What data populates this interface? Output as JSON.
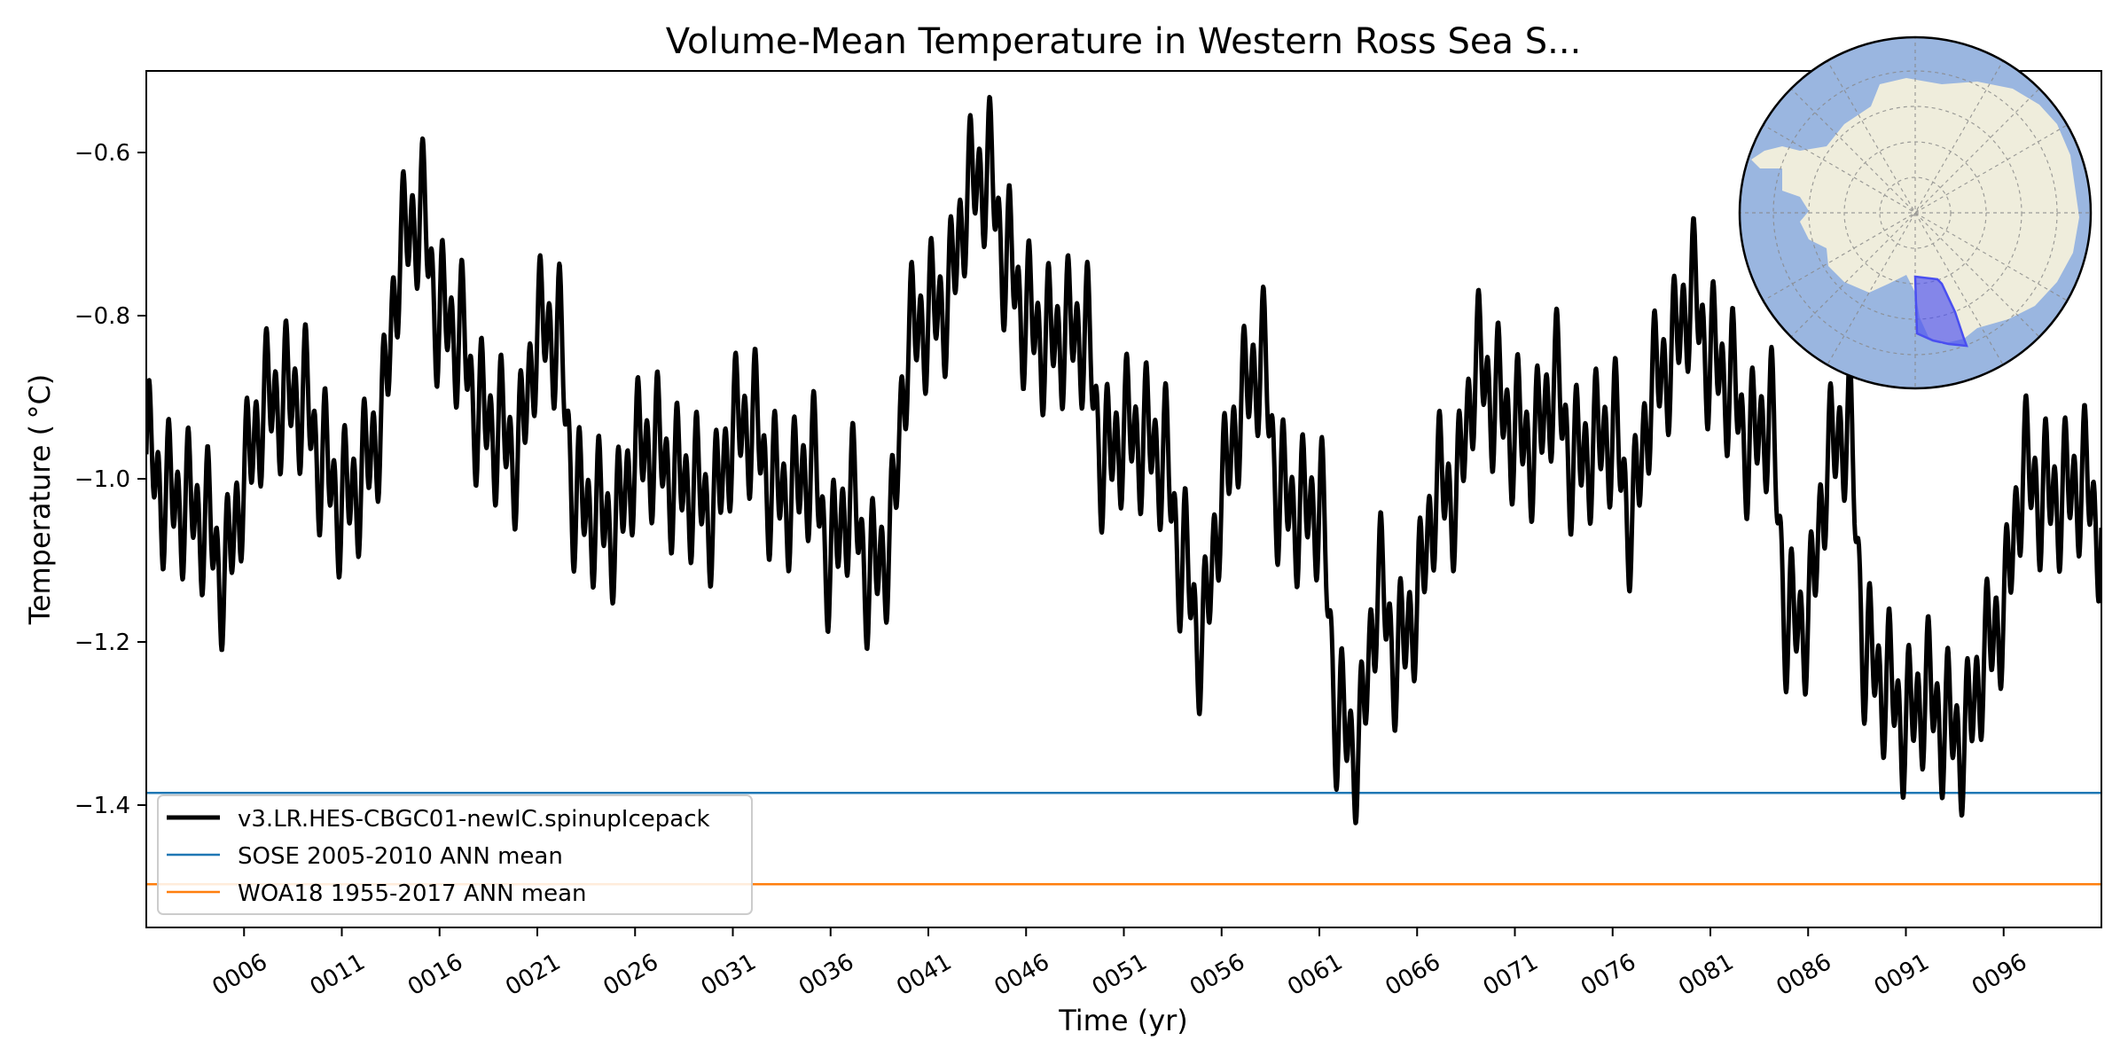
{
  "chart_data": {
    "type": "line",
    "title": "Volume-Mean Temperature in Western Ross Sea S...",
    "xlabel": "Time (yr)",
    "ylabel": "Temperature ( °C)",
    "xlim": [
      1,
      101
    ],
    "ylim": [
      -1.55,
      -0.5
    ],
    "x_ticks": [
      "0006",
      "0011",
      "0016",
      "0021",
      "0026",
      "0031",
      "0036",
      "0041",
      "0046",
      "0051",
      "0056",
      "0061",
      "0066",
      "0071",
      "0076",
      "0081",
      "0086",
      "0091",
      "0096"
    ],
    "x_tick_values": [
      6,
      11,
      16,
      21,
      26,
      31,
      36,
      41,
      46,
      51,
      56,
      61,
      66,
      71,
      76,
      81,
      86,
      91,
      96
    ],
    "y_ticks": [
      "−1.4",
      "−1.2",
      "−1.0",
      "−0.8",
      "−0.6"
    ],
    "y_tick_values": [
      -1.4,
      -1.2,
      -1.0,
      -0.8,
      -0.6
    ],
    "grid": false,
    "legend_position": "lower-left",
    "series": [
      {
        "name": "v3.LR.HES-CBGC01-newIC.spinupIcepack",
        "color": "#000000",
        "seasonal_amplitude": 0.07,
        "x": [
          1,
          2,
          3,
          4,
          5,
          6,
          7,
          8,
          9,
          10,
          11,
          12,
          13,
          14,
          15,
          16,
          17,
          18,
          19,
          20,
          21,
          22,
          23,
          24,
          25,
          26,
          27,
          28,
          29,
          30,
          31,
          32,
          33,
          34,
          35,
          36,
          37,
          38,
          39,
          40,
          41,
          42,
          43,
          44,
          45,
          46,
          47,
          48,
          49,
          50,
          51,
          52,
          53,
          54,
          55,
          56,
          57,
          58,
          59,
          60,
          61,
          62,
          63,
          64,
          65,
          66,
          67,
          68,
          69,
          70,
          71,
          72,
          73,
          74,
          75,
          76,
          77,
          78,
          79,
          80,
          81,
          82,
          83,
          84,
          85,
          86,
          87,
          88,
          89,
          90,
          91,
          92,
          93,
          94,
          95,
          96,
          97,
          98,
          99,
          100,
          101
        ],
        "annual_mean": [
          -0.97,
          -1.02,
          -1.03,
          -1.05,
          -1.12,
          -1.0,
          -0.91,
          -0.9,
          -0.9,
          -0.98,
          -1.03,
          -1.0,
          -0.93,
          -0.72,
          -0.67,
          -0.8,
          -0.82,
          -0.92,
          -0.94,
          -0.97,
          -0.82,
          -0.82,
          -1.03,
          -1.04,
          -1.06,
          -0.97,
          -0.96,
          -1.0,
          -1.01,
          -1.04,
          -0.94,
          -0.93,
          -1.01,
          -1.02,
          -0.98,
          -1.1,
          -1.02,
          -1.12,
          -1.08,
          -0.83,
          -0.8,
          -0.78,
          -0.65,
          -0.62,
          -0.73,
          -0.8,
          -0.83,
          -0.82,
          -0.82,
          -0.98,
          -0.94,
          -0.95,
          -0.97,
          -1.1,
          -1.2,
          -1.02,
          -0.91,
          -0.85,
          -1.02,
          -1.04,
          -1.03,
          -1.3,
          -1.33,
          -1.13,
          -1.22,
          -1.15,
          -1.01,
          -1.02,
          -0.86,
          -0.9,
          -0.94,
          -0.96,
          -0.88,
          -0.98,
          -0.96,
          -0.94,
          -1.05,
          -0.89,
          -0.85,
          -0.77,
          -0.85,
          -0.88,
          -0.96,
          -0.92,
          -1.18,
          -1.17,
          -0.98,
          -0.93,
          -1.22,
          -1.25,
          -1.3,
          -1.26,
          -1.3,
          -1.32,
          -1.22,
          -1.16,
          -0.99,
          -1.02,
          -1.02,
          -1.0,
          -1.06
        ]
      },
      {
        "name": "SOSE 2005-2010 ANN mean",
        "color": "#1f77b4",
        "value": -1.385
      },
      {
        "name": "WOA18 1955-2017 ANN mean",
        "color": "#ff7f0e",
        "value": -1.497
      }
    ],
    "inset_map": {
      "projection": "south-polar stereographic",
      "ocean_color": "#9ab6e0",
      "land_color": "#efeddc",
      "region_color": "#4a4ff0"
    }
  }
}
